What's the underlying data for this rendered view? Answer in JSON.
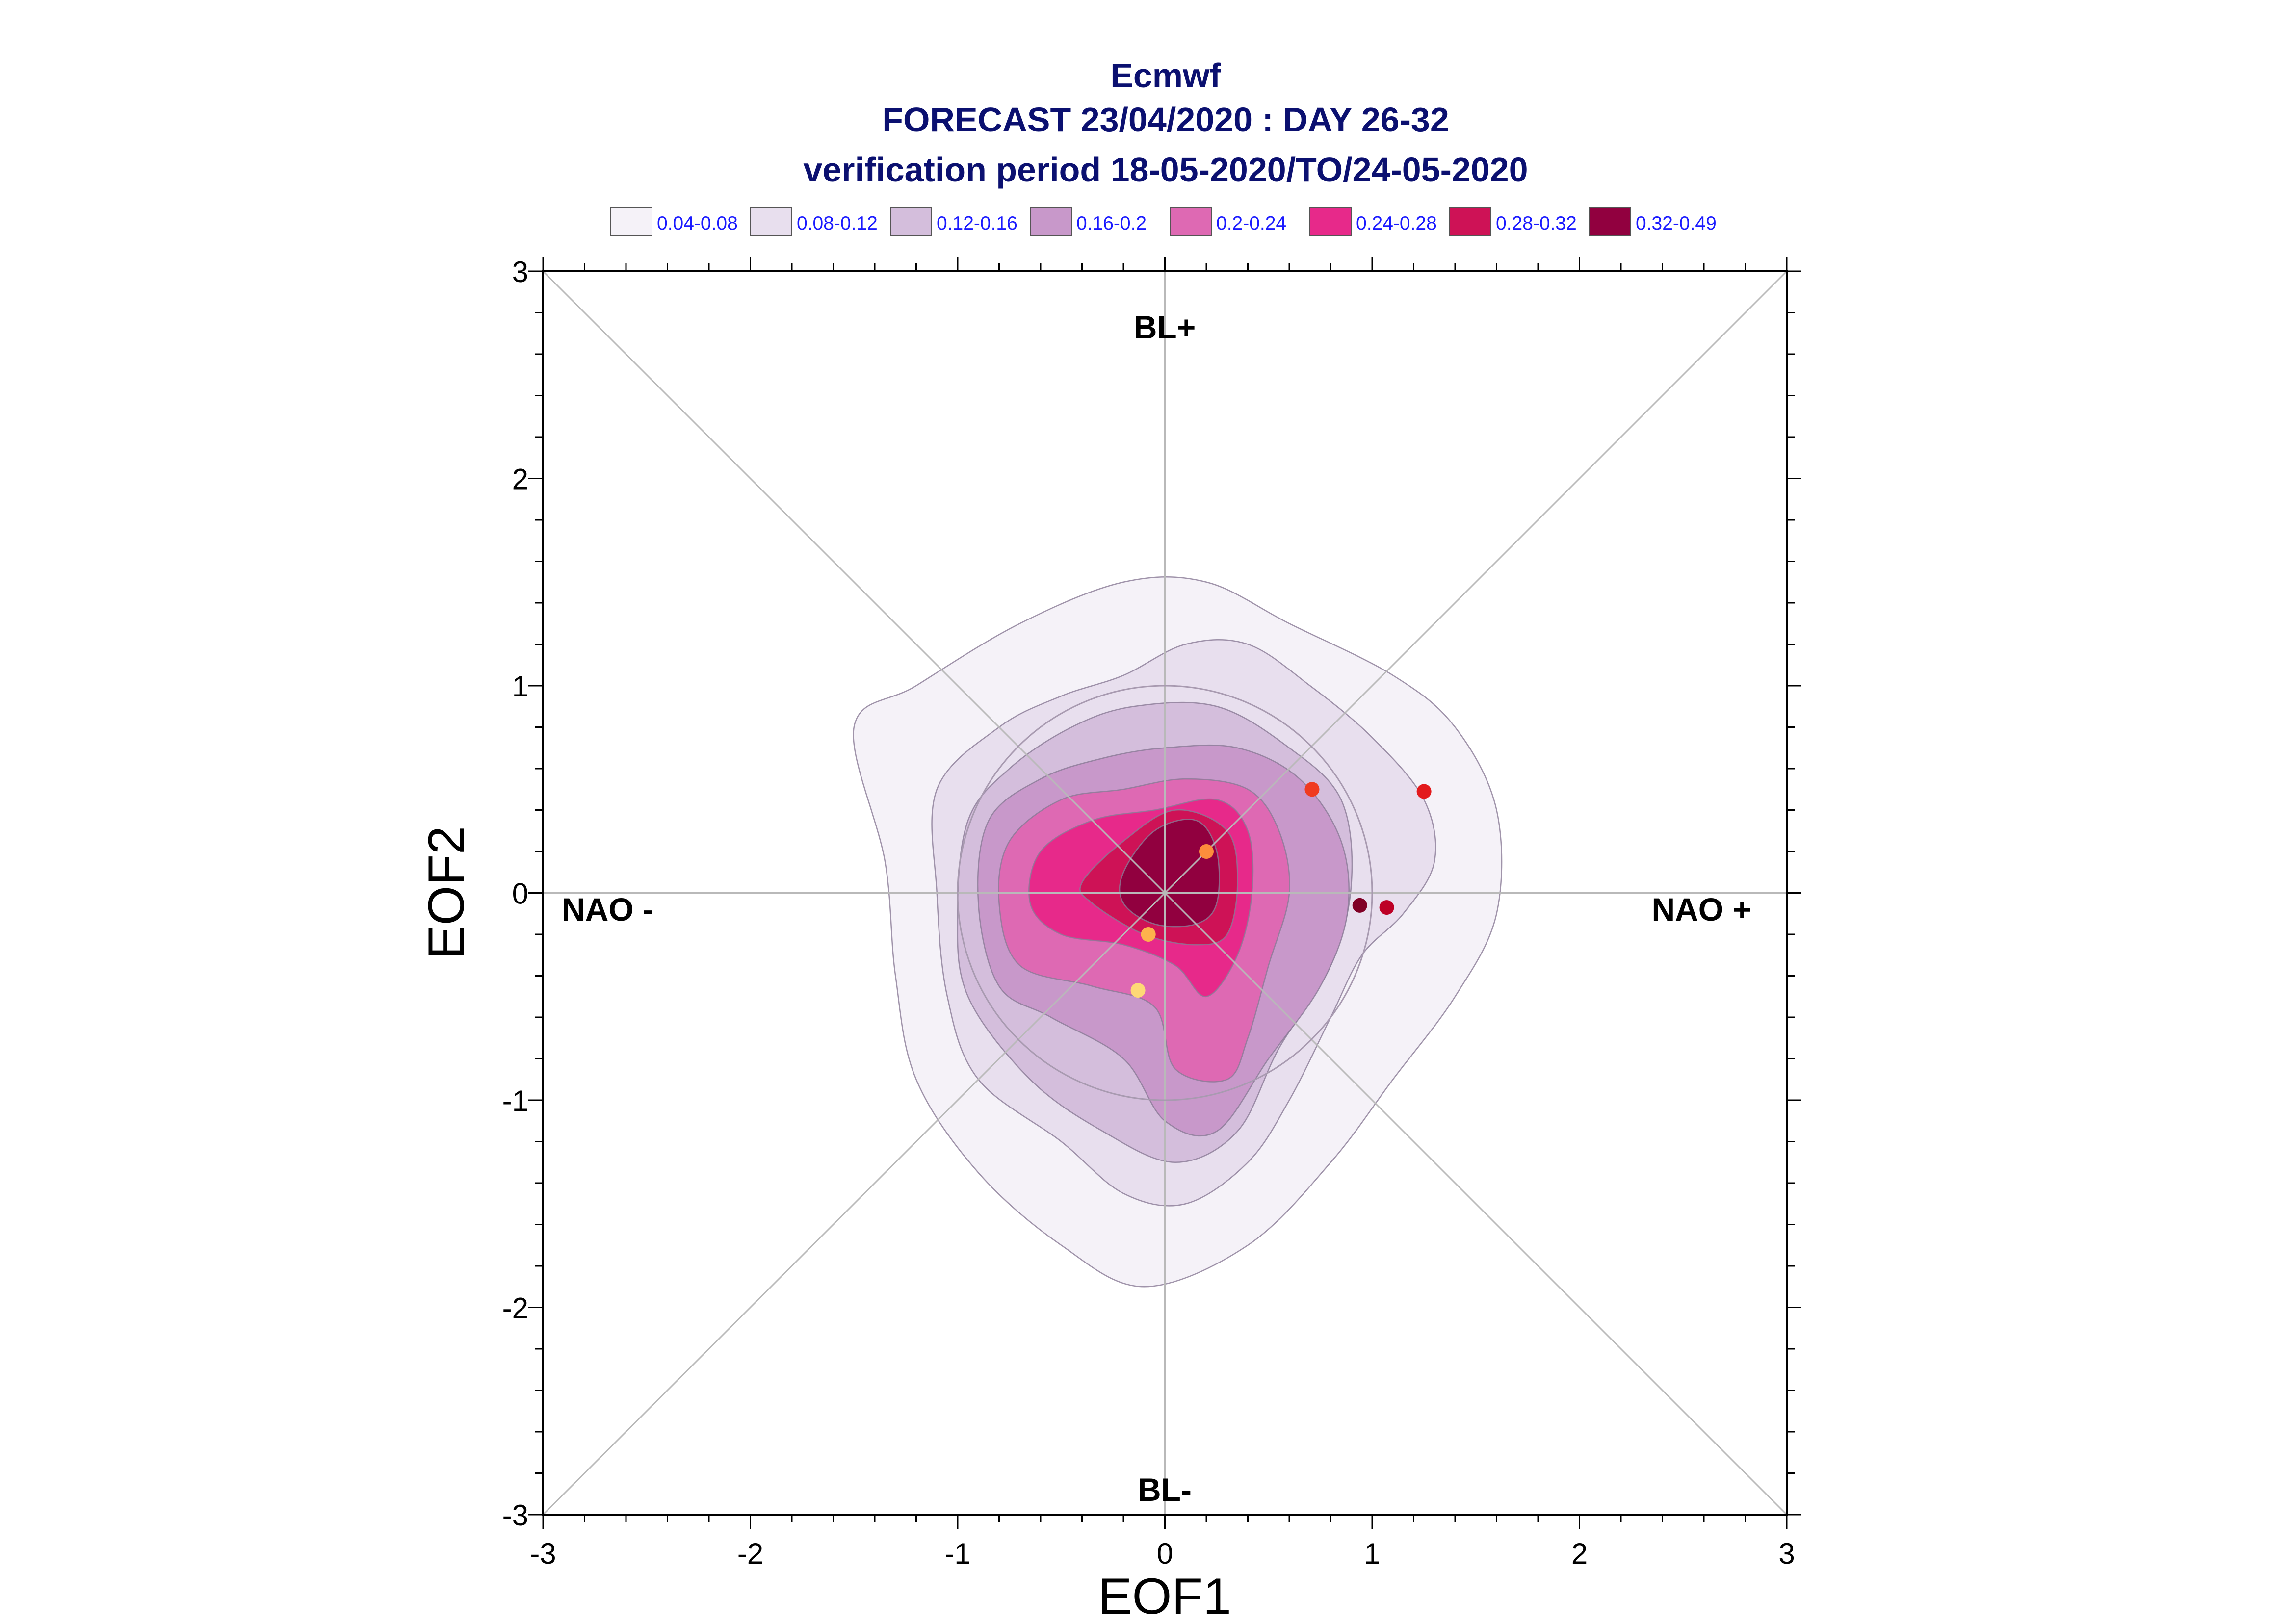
{
  "title": {
    "line1": "Ecmwf",
    "line2": "FORECAST 23/04/2020 : DAY 26-32",
    "line3": "verification period 18-05-2020/TO/24-05-2020"
  },
  "chart_data": {
    "type": "contour",
    "xlabel": "EOF1",
    "ylabel": "EOF2",
    "xlim": [
      -3,
      3
    ],
    "ylim": [
      -3,
      3
    ],
    "xticks": [
      "-3",
      "-2",
      "-1",
      "0",
      "1",
      "2",
      "3"
    ],
    "yticks": [
      "-3",
      "-2",
      "-1",
      "0",
      "1",
      "2",
      "3"
    ],
    "regime_labels": {
      "top": "BL+",
      "bottom": "BL-",
      "left": "NAO -",
      "right": "NAO +"
    },
    "legend": [
      {
        "label": "0.04-0.08",
        "color": "#f5f2f8"
      },
      {
        "label": "0.08-0.12",
        "color": "#e8dfee"
      },
      {
        "label": "0.12-0.16",
        "color": "#d4bedc"
      },
      {
        "label": "0.16-0.2",
        "color": "#c898ca"
      },
      {
        "label": "0.2-0.24",
        "color": "#de69b3"
      },
      {
        "label": "0.24-0.28",
        "color": "#e7298a"
      },
      {
        "label": "0.28-0.32",
        "color": "#ce1256"
      },
      {
        "label": "0.32-0.49",
        "color": "#91003f"
      }
    ],
    "density_levels": [
      {
        "range": "0.04-0.08",
        "color": "#f5f2f8",
        "outline": [
          [
            -1.5,
            0.8
          ],
          [
            -1.2,
            1.0
          ],
          [
            -0.7,
            1.3
          ],
          [
            -0.2,
            1.5
          ],
          [
            0.2,
            1.5
          ],
          [
            0.6,
            1.3
          ],
          [
            1.1,
            1.05
          ],
          [
            1.4,
            0.8
          ],
          [
            1.6,
            0.4
          ],
          [
            1.6,
            -0.1
          ],
          [
            1.4,
            -0.5
          ],
          [
            1.1,
            -0.9
          ],
          [
            0.8,
            -1.3
          ],
          [
            0.4,
            -1.7
          ],
          [
            -0.1,
            -1.9
          ],
          [
            -0.5,
            -1.7
          ],
          [
            -0.9,
            -1.35
          ],
          [
            -1.2,
            -0.9
          ],
          [
            -1.3,
            -0.4
          ],
          [
            -1.35,
            0.15
          ]
        ]
      },
      {
        "range": "0.08-0.12",
        "color": "#e8dfee",
        "outline": [
          [
            -1.1,
            0.5
          ],
          [
            -0.8,
            0.8
          ],
          [
            -0.5,
            0.95
          ],
          [
            -0.2,
            1.05
          ],
          [
            0.1,
            1.2
          ],
          [
            0.4,
            1.2
          ],
          [
            0.7,
            1.0
          ],
          [
            1.0,
            0.75
          ],
          [
            1.25,
            0.45
          ],
          [
            1.3,
            0.15
          ],
          [
            1.15,
            -0.1
          ],
          [
            0.95,
            -0.3
          ],
          [
            0.8,
            -0.6
          ],
          [
            0.6,
            -1.0
          ],
          [
            0.4,
            -1.3
          ],
          [
            0.1,
            -1.5
          ],
          [
            -0.2,
            -1.45
          ],
          [
            -0.5,
            -1.2
          ],
          [
            -0.9,
            -0.9
          ],
          [
            -1.05,
            -0.5
          ],
          [
            -1.1,
            0.0
          ]
        ]
      },
      {
        "range": "0.12-0.16",
        "color": "#d4bedc",
        "outline": [
          [
            -0.95,
            0.35
          ],
          [
            -0.75,
            0.6
          ],
          [
            -0.45,
            0.8
          ],
          [
            -0.15,
            0.9
          ],
          [
            0.25,
            0.9
          ],
          [
            0.6,
            0.7
          ],
          [
            0.85,
            0.45
          ],
          [
            0.9,
            0.05
          ],
          [
            0.8,
            -0.35
          ],
          [
            0.55,
            -0.75
          ],
          [
            0.35,
            -1.15
          ],
          [
            0.05,
            -1.3
          ],
          [
            -0.3,
            -1.15
          ],
          [
            -0.65,
            -0.9
          ],
          [
            -0.95,
            -0.5
          ],
          [
            -1.0,
            -0.1
          ]
        ]
      },
      {
        "range": "0.16-0.2",
        "color": "#c898ca",
        "outline": [
          [
            -0.85,
            0.35
          ],
          [
            -0.6,
            0.55
          ],
          [
            -0.3,
            0.65
          ],
          [
            0.0,
            0.7
          ],
          [
            0.35,
            0.7
          ],
          [
            0.65,
            0.55
          ],
          [
            0.85,
            0.25
          ],
          [
            0.88,
            -0.1
          ],
          [
            0.75,
            -0.45
          ],
          [
            0.5,
            -0.8
          ],
          [
            0.25,
            -1.15
          ],
          [
            0.0,
            -1.1
          ],
          [
            -0.2,
            -0.8
          ],
          [
            -0.55,
            -0.6
          ],
          [
            -0.8,
            -0.45
          ],
          [
            -0.9,
            -0.05
          ]
        ]
      },
      {
        "range": "0.2-0.24",
        "color": "#de69b3",
        "outline": [
          [
            -0.75,
            0.25
          ],
          [
            -0.5,
            0.45
          ],
          [
            -0.2,
            0.5
          ],
          [
            0.1,
            0.55
          ],
          [
            0.4,
            0.5
          ],
          [
            0.55,
            0.3
          ],
          [
            0.6,
            0.0
          ],
          [
            0.5,
            -0.35
          ],
          [
            0.4,
            -0.7
          ],
          [
            0.3,
            -0.9
          ],
          [
            0.05,
            -0.85
          ],
          [
            -0.05,
            -0.55
          ],
          [
            -0.35,
            -0.45
          ],
          [
            -0.7,
            -0.35
          ],
          [
            -0.8,
            -0.05
          ]
        ]
      },
      {
        "range": "0.24-0.28",
        "color": "#e7298a",
        "outline": [
          [
            -0.6,
            0.2
          ],
          [
            -0.35,
            0.35
          ],
          [
            -0.05,
            0.4
          ],
          [
            0.25,
            0.45
          ],
          [
            0.4,
            0.3
          ],
          [
            0.42,
            0.0
          ],
          [
            0.35,
            -0.3
          ],
          [
            0.2,
            -0.5
          ],
          [
            0.05,
            -0.35
          ],
          [
            -0.2,
            -0.25
          ],
          [
            -0.5,
            -0.2
          ],
          [
            -0.65,
            -0.05
          ]
        ]
      },
      {
        "range": "0.28-0.32",
        "color": "#ce1256",
        "outline": [
          [
            -0.4,
            0.05
          ],
          [
            -0.2,
            0.25
          ],
          [
            0.05,
            0.4
          ],
          [
            0.3,
            0.3
          ],
          [
            0.35,
            0.05
          ],
          [
            0.3,
            -0.2
          ],
          [
            0.15,
            -0.25
          ],
          [
            -0.1,
            -0.2
          ],
          [
            -0.35,
            -0.05
          ]
        ]
      },
      {
        "range": "0.32-0.49",
        "color": "#91003f",
        "outline": [
          [
            -0.2,
            0.1
          ],
          [
            -0.05,
            0.3
          ],
          [
            0.15,
            0.35
          ],
          [
            0.25,
            0.2
          ],
          [
            0.25,
            -0.05
          ],
          [
            0.15,
            -0.15
          ],
          [
            -0.05,
            -0.15
          ],
          [
            -0.2,
            -0.05
          ]
        ]
      }
    ],
    "points": [
      {
        "x": 0.2,
        "y": 0.2,
        "color": "#fd8d3c"
      },
      {
        "x": 0.71,
        "y": 0.5,
        "color": "#f03b20"
      },
      {
        "x": 1.25,
        "y": 0.49,
        "color": "#e31a1c"
      },
      {
        "x": 0.94,
        "y": -0.06,
        "color": "#800026"
      },
      {
        "x": 1.07,
        "y": -0.07,
        "color": "#bd0026"
      },
      {
        "x": -0.08,
        "y": -0.2,
        "color": "#feb24c"
      },
      {
        "x": -0.13,
        "y": -0.47,
        "color": "#fed976"
      }
    ],
    "reference_circle_radius": 1,
    "grid": false
  }
}
